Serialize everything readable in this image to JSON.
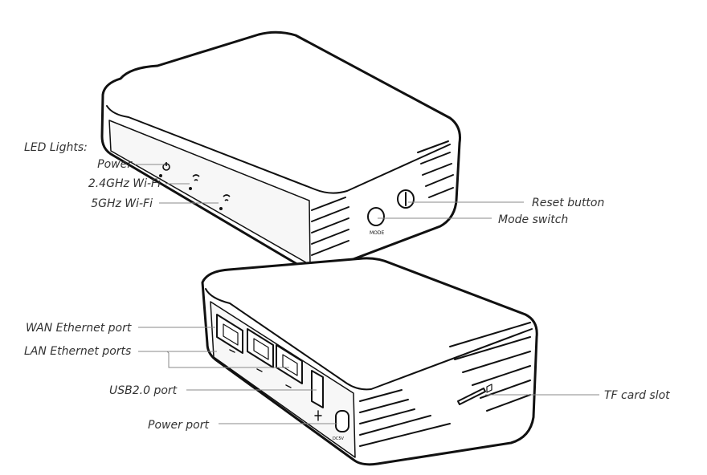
{
  "colors": {
    "outline": "#111111",
    "body_fill": "#ffffff",
    "shade_fill": "#f2f2f2",
    "leader_line": "#888888",
    "label_text": "#333333"
  },
  "labels": {
    "led_heading": "LED Lights:",
    "power": "Power",
    "wifi_24": "2.4GHz Wi-Fi",
    "wifi_5": "5GHz Wi-Fi",
    "reset_button": "Reset button",
    "mode_switch": "Mode switch",
    "wan_port": "WAN Ethernet port",
    "lan_ports": "LAN Ethernet ports",
    "usb_port": "USB2.0 port",
    "power_port": "Power port",
    "tf_slot": "TF card slot"
  },
  "device_marks": {
    "mode_button_text": "MODE",
    "power_port_text": "DC5V"
  },
  "icons": {
    "power": "power-icon",
    "wifi_24": "wifi-24-icon",
    "wifi_5": "wifi-5-icon",
    "usb": "usb-icon",
    "ethernet": "ethernet-icon",
    "tf_card": "tf-card-icon"
  }
}
